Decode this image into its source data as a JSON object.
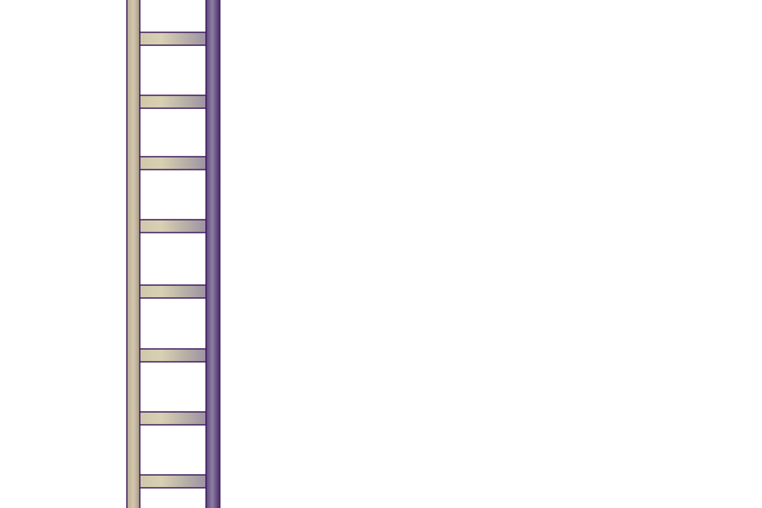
{
  "scene": {
    "background_color": "#ffffff",
    "ladder": {
      "rung_count": 8,
      "colors": {
        "outline": "#3b1a5c",
        "left_rail_light": "#cfc4a8",
        "left_rail_dark": "#a89a88",
        "right_rail_light": "#8a7aa0",
        "right_rail_dark": "#4a2f6b",
        "rung_light": "#d6cfb0",
        "rung_mid": "#b9b0a2",
        "rung_dark": "#9a8fa6"
      }
    }
  }
}
